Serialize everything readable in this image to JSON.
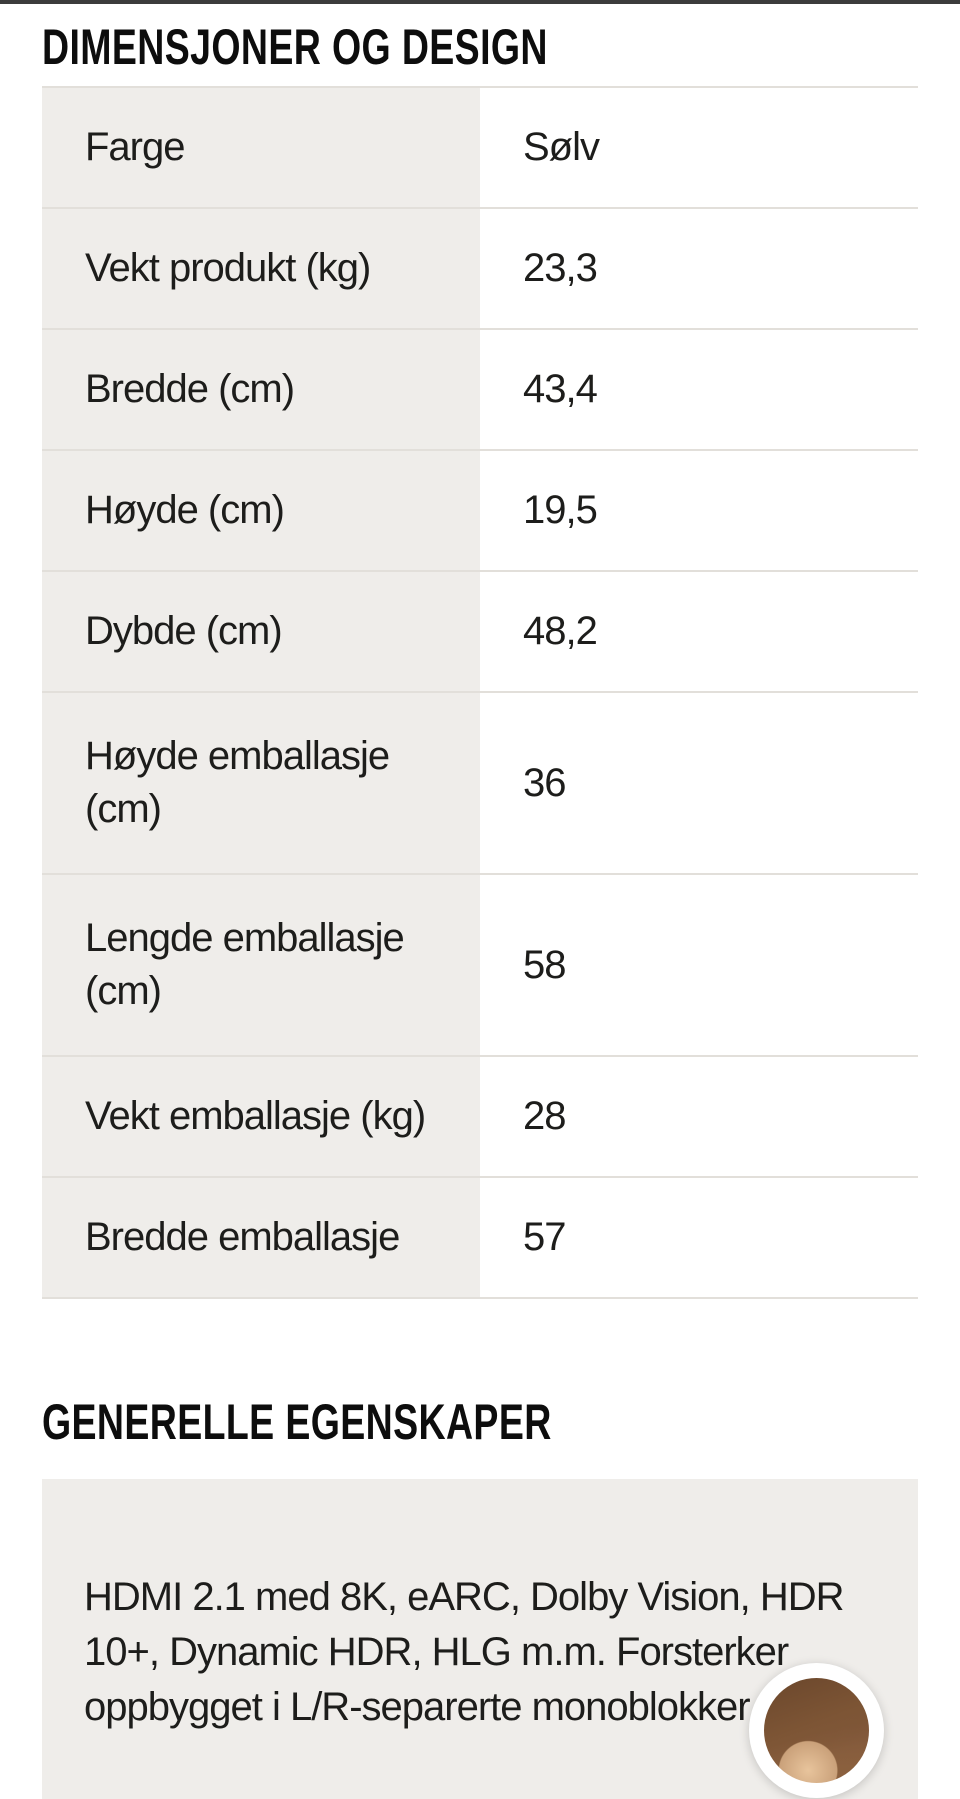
{
  "colors": {
    "page_bg": "#ffffff",
    "top_bar": "#3c3c3c",
    "cell_bg": "#efedea",
    "divider": "#e2dfda",
    "heading_text": "#0d0d0d",
    "body_text": "#1d1d1b"
  },
  "dimensions_section": {
    "title": "DIMENSJONER OG DESIGN",
    "rows": [
      {
        "label": "Farge",
        "value": "Sølv"
      },
      {
        "label": "Vekt produkt (kg)",
        "value": "23,3"
      },
      {
        "label": "Bredde (cm)",
        "value": "43,4"
      },
      {
        "label": "Høyde (cm)",
        "value": "19,5"
      },
      {
        "label": "Dybde (cm)",
        "value": "48,2"
      },
      {
        "label": "Høyde emballasje\n(cm)",
        "value": "36"
      },
      {
        "label": "Lengde emballasje\n(cm)",
        "value": "58"
      },
      {
        "label": "Vekt emballasje (kg)",
        "value": "28"
      },
      {
        "label": "Bredde emballasje",
        "value": "57"
      }
    ]
  },
  "general_section": {
    "title": "GENERELLE EGENSKAPER",
    "paragraph": "HDMI 2.1 med 8K, eARC, Dolby Vision, HDR\n10+, Dynamic HDR, HLG m.m. Forsterker\noppbygget i L/R-separerte monoblokker"
  }
}
